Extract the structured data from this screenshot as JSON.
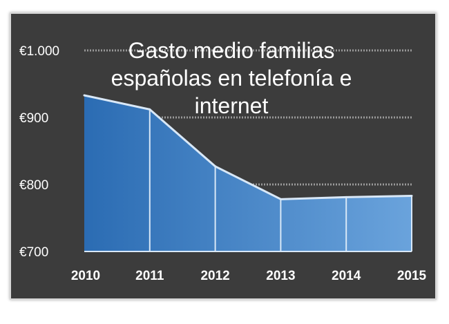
{
  "colors": {
    "background": "#3c3c3c",
    "area_dark": "#2b6cb3",
    "area_light": "#6aa3dc",
    "line": "#d9e8f7",
    "grid": "#9a9a9a",
    "text": "#ffffff"
  },
  "chart_data": {
    "type": "area",
    "title_lines": [
      "Gasto medio familias",
      "españolas en telefonía e",
      "internet"
    ],
    "x": [
      "2010",
      "2011",
      "2012",
      "2013",
      "2014",
      "2015"
    ],
    "series": [
      {
        "values": [
          933,
          912,
          827,
          778,
          781,
          783
        ]
      }
    ],
    "ylim": [
      700,
      1000
    ],
    "yticks": [
      700,
      800,
      900,
      1000
    ],
    "ytick_labels": [
      "€700",
      "€800",
      "€900",
      "€1.000"
    ],
    "xlabel": "",
    "ylabel": "",
    "grid": "dotted horizontal",
    "legend": "none"
  }
}
